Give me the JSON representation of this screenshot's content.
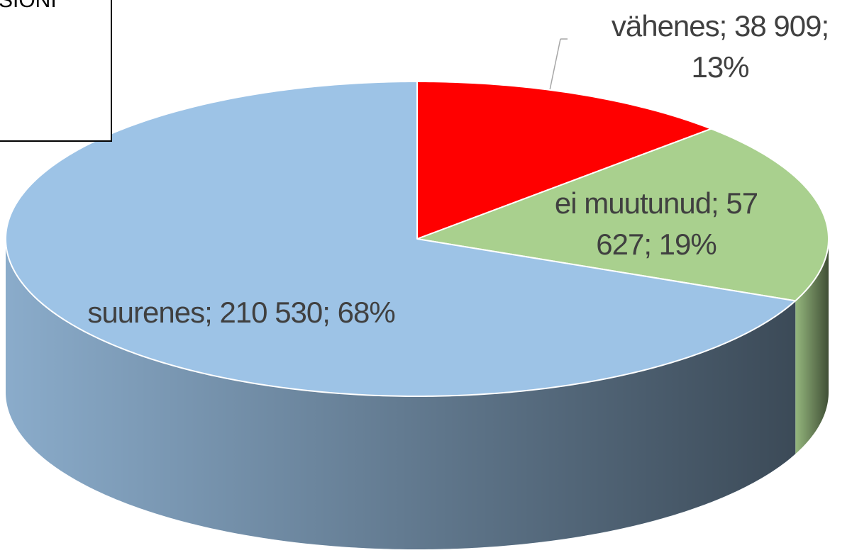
{
  "chart_data": {
    "type": "pie3d",
    "title": "SIONI",
    "categories": [
      "vähenes",
      "ei muutunud",
      "suurenes"
    ],
    "values": [
      38909,
      57627,
      210530
    ],
    "value_labels": [
      "vähenes; 38 909; 13%",
      "ei muutunud; 57 627; 19%",
      "suurenes; 210 530; 68%"
    ],
    "colors": [
      "#ff0000",
      "#a9d08e",
      "#9dc3e6"
    ]
  }
}
